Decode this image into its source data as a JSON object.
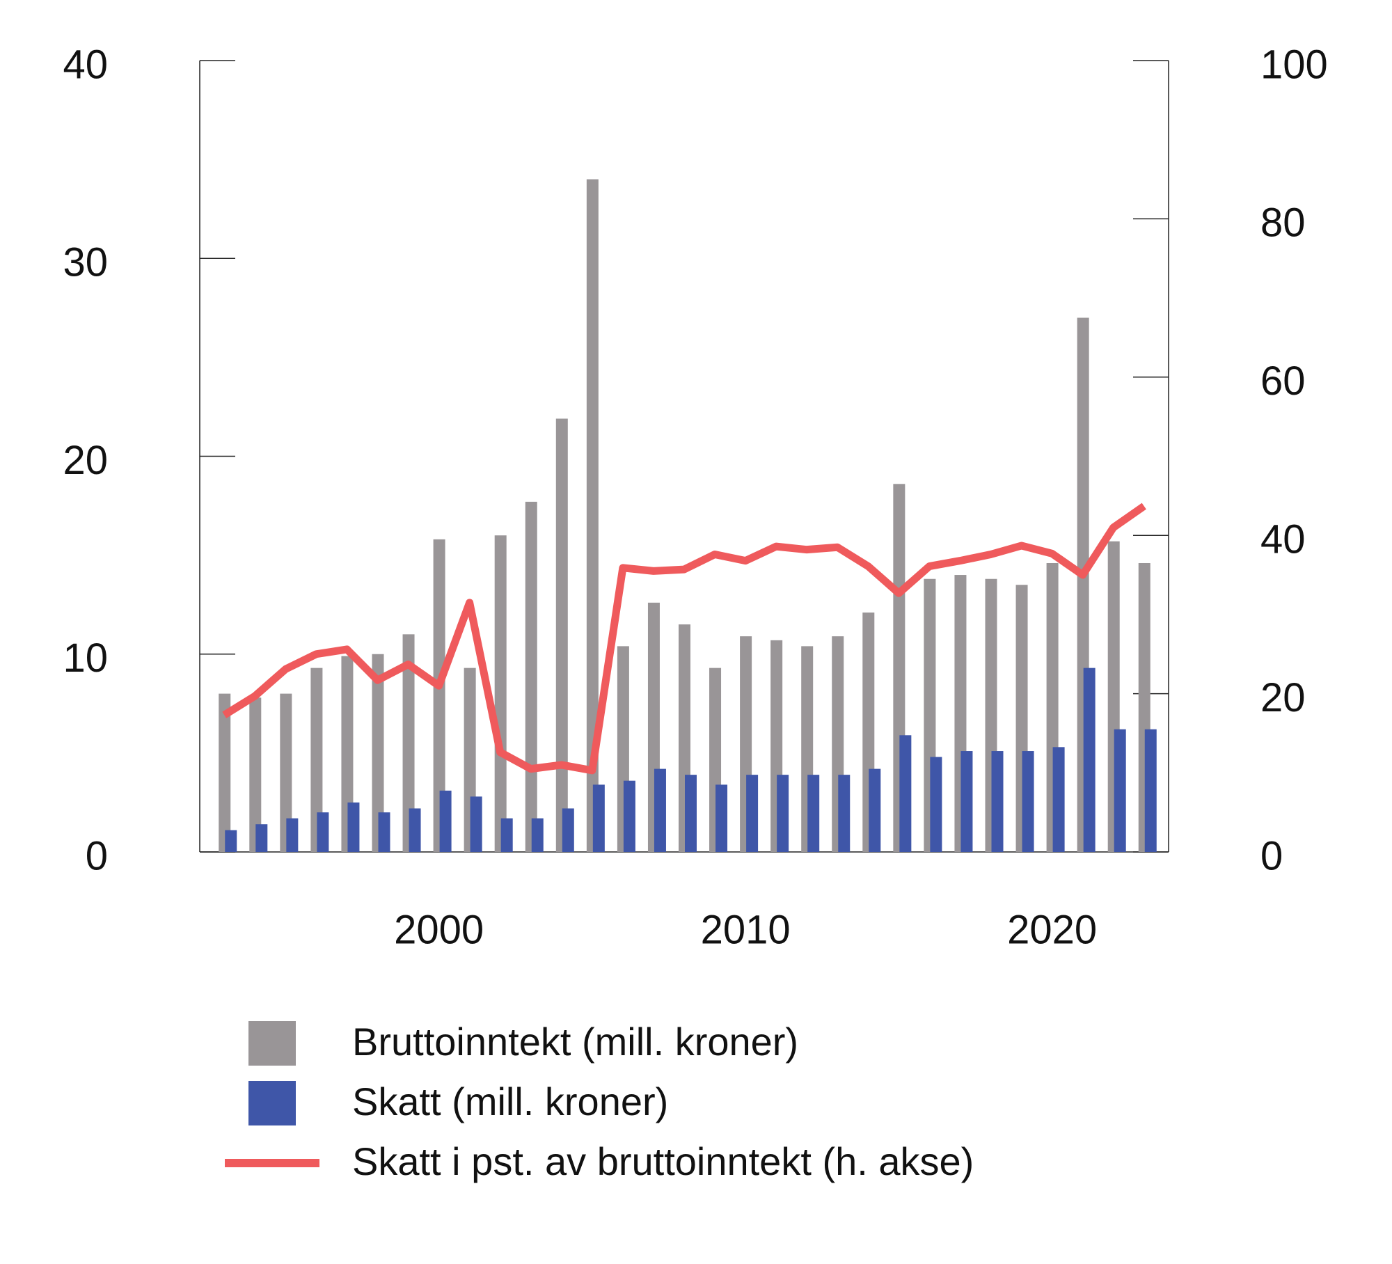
{
  "chart_data": {
    "type": "bar-line",
    "x": [
      1993,
      1994,
      1995,
      1996,
      1997,
      1998,
      1999,
      2000,
      2001,
      2002,
      2003,
      2004,
      2005,
      2006,
      2007,
      2008,
      2009,
      2010,
      2011,
      2012,
      2013,
      2014,
      2015,
      2016,
      2017,
      2018,
      2019,
      2020,
      2021,
      2022,
      2023
    ],
    "series": [
      {
        "name": "Bruttoinntekt (mill. kroner)",
        "color": "#999597",
        "kind": "bar",
        "values": [
          8,
          7.8,
          8,
          9.3,
          9.9,
          10,
          11,
          15.8,
          9.3,
          16,
          17.7,
          21.9,
          34,
          10.4,
          12.6,
          11.5,
          9.3,
          10.9,
          10.7,
          10.4,
          10.9,
          12.1,
          18.6,
          13.8,
          14,
          13.8,
          13.5,
          14.6,
          27,
          15.7,
          14.6
        ]
      },
      {
        "name": "Skatt (mill. kroner)",
        "color": "#3f56a8",
        "kind": "bar",
        "values": [
          1.1,
          1.4,
          1.7,
          2.0,
          2.5,
          2.0,
          2.2,
          3.1,
          2.8,
          1.7,
          1.7,
          2.2,
          3.4,
          3.6,
          4.2,
          3.9,
          3.4,
          3.9,
          3.9,
          3.9,
          3.9,
          4.2,
          5.9,
          4.8,
          5.1,
          5.1,
          5.1,
          5.3,
          9.3,
          6.2,
          6.2
        ]
      },
      {
        "name": "Skatt i pst. av bruttoinntekt (h. akse)",
        "color": "#ef5a5c",
        "kind": "line",
        "axis": "y2",
        "values": [
          17.3,
          19.7,
          23.1,
          25,
          25.6,
          21.7,
          23.7,
          21,
          31.5,
          12.6,
          10.5,
          11,
          10.3,
          35.9,
          35.5,
          35.7,
          37.6,
          36.8,
          38.6,
          38.2,
          38.5,
          36.1,
          32.7,
          36.1,
          36.8,
          37.6,
          38.7,
          37.7,
          35,
          41,
          43.7
        ]
      }
    ],
    "xlim": [
      1992.2,
      2023.8
    ],
    "xticks": [
      2000,
      2010,
      2020
    ],
    "ylim": [
      0,
      40
    ],
    "yticks": [
      0,
      10,
      20,
      30,
      40
    ],
    "y2lim": [
      0,
      100
    ],
    "y2ticks": [
      0,
      20,
      40,
      60,
      80,
      100
    ]
  }
}
